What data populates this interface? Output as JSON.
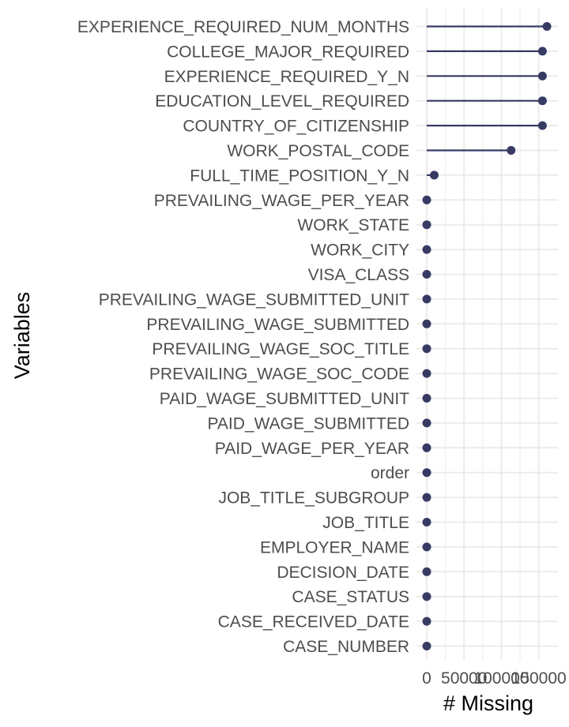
{
  "chart_data": {
    "type": "lollipop",
    "title": "",
    "xlabel": "# Missing",
    "ylabel": "Variables",
    "xlim": [
      0,
      167278
    ],
    "x_ticks": [
      0,
      50000,
      100000,
      150000
    ],
    "x_tick_labels": [
      "0",
      "50000",
      "100000",
      "150000"
    ],
    "grid": true,
    "point_color": "#373a63",
    "line_color": "#373a63",
    "grid_color": "#ebebeb",
    "categories": [
      "EXPERIENCE_REQUIRED_NUM_MONTHS",
      "COLLEGE_MAJOR_REQUIRED",
      "EXPERIENCE_REQUIRED_Y_N",
      "EDUCATION_LEVEL_REQUIRED",
      "COUNTRY_OF_CITIZENSHIP",
      "WORK_POSTAL_CODE",
      "FULL_TIME_POSITION_Y_N",
      "PREVAILING_WAGE_PER_YEAR",
      "WORK_STATE",
      "WORK_CITY",
      "VISA_CLASS",
      "PREVAILING_WAGE_SUBMITTED_UNIT",
      "PREVAILING_WAGE_SUBMITTED",
      "PREVAILING_WAGE_SOC_TITLE",
      "PREVAILING_WAGE_SOC_CODE",
      "PAID_WAGE_SUBMITTED_UNIT",
      "PAID_WAGE_SUBMITTED",
      "PAID_WAGE_PER_YEAR",
      "order",
      "JOB_TITLE_SUBGROUP",
      "JOB_TITLE",
      "EMPLOYER_NAME",
      "DECISION_DATE",
      "CASE_STATUS",
      "CASE_RECEIVED_DATE",
      "CASE_NUMBER"
    ],
    "values": [
      161000,
      155000,
      155000,
      155000,
      155000,
      113000,
      10000,
      0,
      0,
      0,
      0,
      0,
      0,
      0,
      0,
      0,
      0,
      0,
      0,
      0,
      0,
      0,
      0,
      0,
      0,
      0
    ]
  }
}
